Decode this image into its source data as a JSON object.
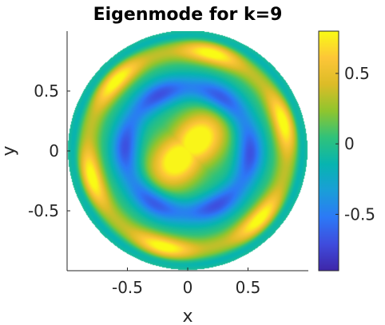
{
  "chart_data": {
    "type": "heatmap",
    "title": "Eigenmode for k=9",
    "xlabel": "x",
    "ylabel": "y",
    "xlim": [
      -1,
      1
    ],
    "ylim": [
      -1,
      1
    ],
    "domain": "unit disk",
    "x_ticks": [
      -0.5,
      0,
      0.5
    ],
    "x_tick_labels": [
      "-0.5",
      "0",
      "0.5"
    ],
    "y_ticks": [
      0.5,
      0,
      -0.5
    ],
    "y_tick_labels": [
      "0.5",
      "0",
      "-0.5"
    ],
    "colorbar": {
      "range": [
        -0.9,
        0.8
      ],
      "ticks": [
        0.5,
        0,
        -0.5
      ],
      "tick_labels": [
        "0.5",
        "0",
        "-0.5"
      ],
      "colormap": [
        "#3e26a8",
        "#3f4cdd",
        "#2c79f6",
        "#1a9ed8",
        "#07b4b0",
        "#2fc27b",
        "#8fc52e",
        "#dcbc27",
        "#fdc638",
        "#f9fb15"
      ]
    },
    "field_features": [
      {
        "feature": "central peak",
        "center": [
          0,
          0
        ],
        "value": 0.78
      },
      {
        "feature": "inner dark ring",
        "radius": 0.5,
        "value": -0.7
      },
      {
        "feature": "hot spots near boundary",
        "count": 6,
        "radius": 0.82,
        "value": 0.78
      },
      {
        "feature": "boundary",
        "radius": 1.0,
        "value": 0
      }
    ],
    "grid": false,
    "legend": "none"
  }
}
